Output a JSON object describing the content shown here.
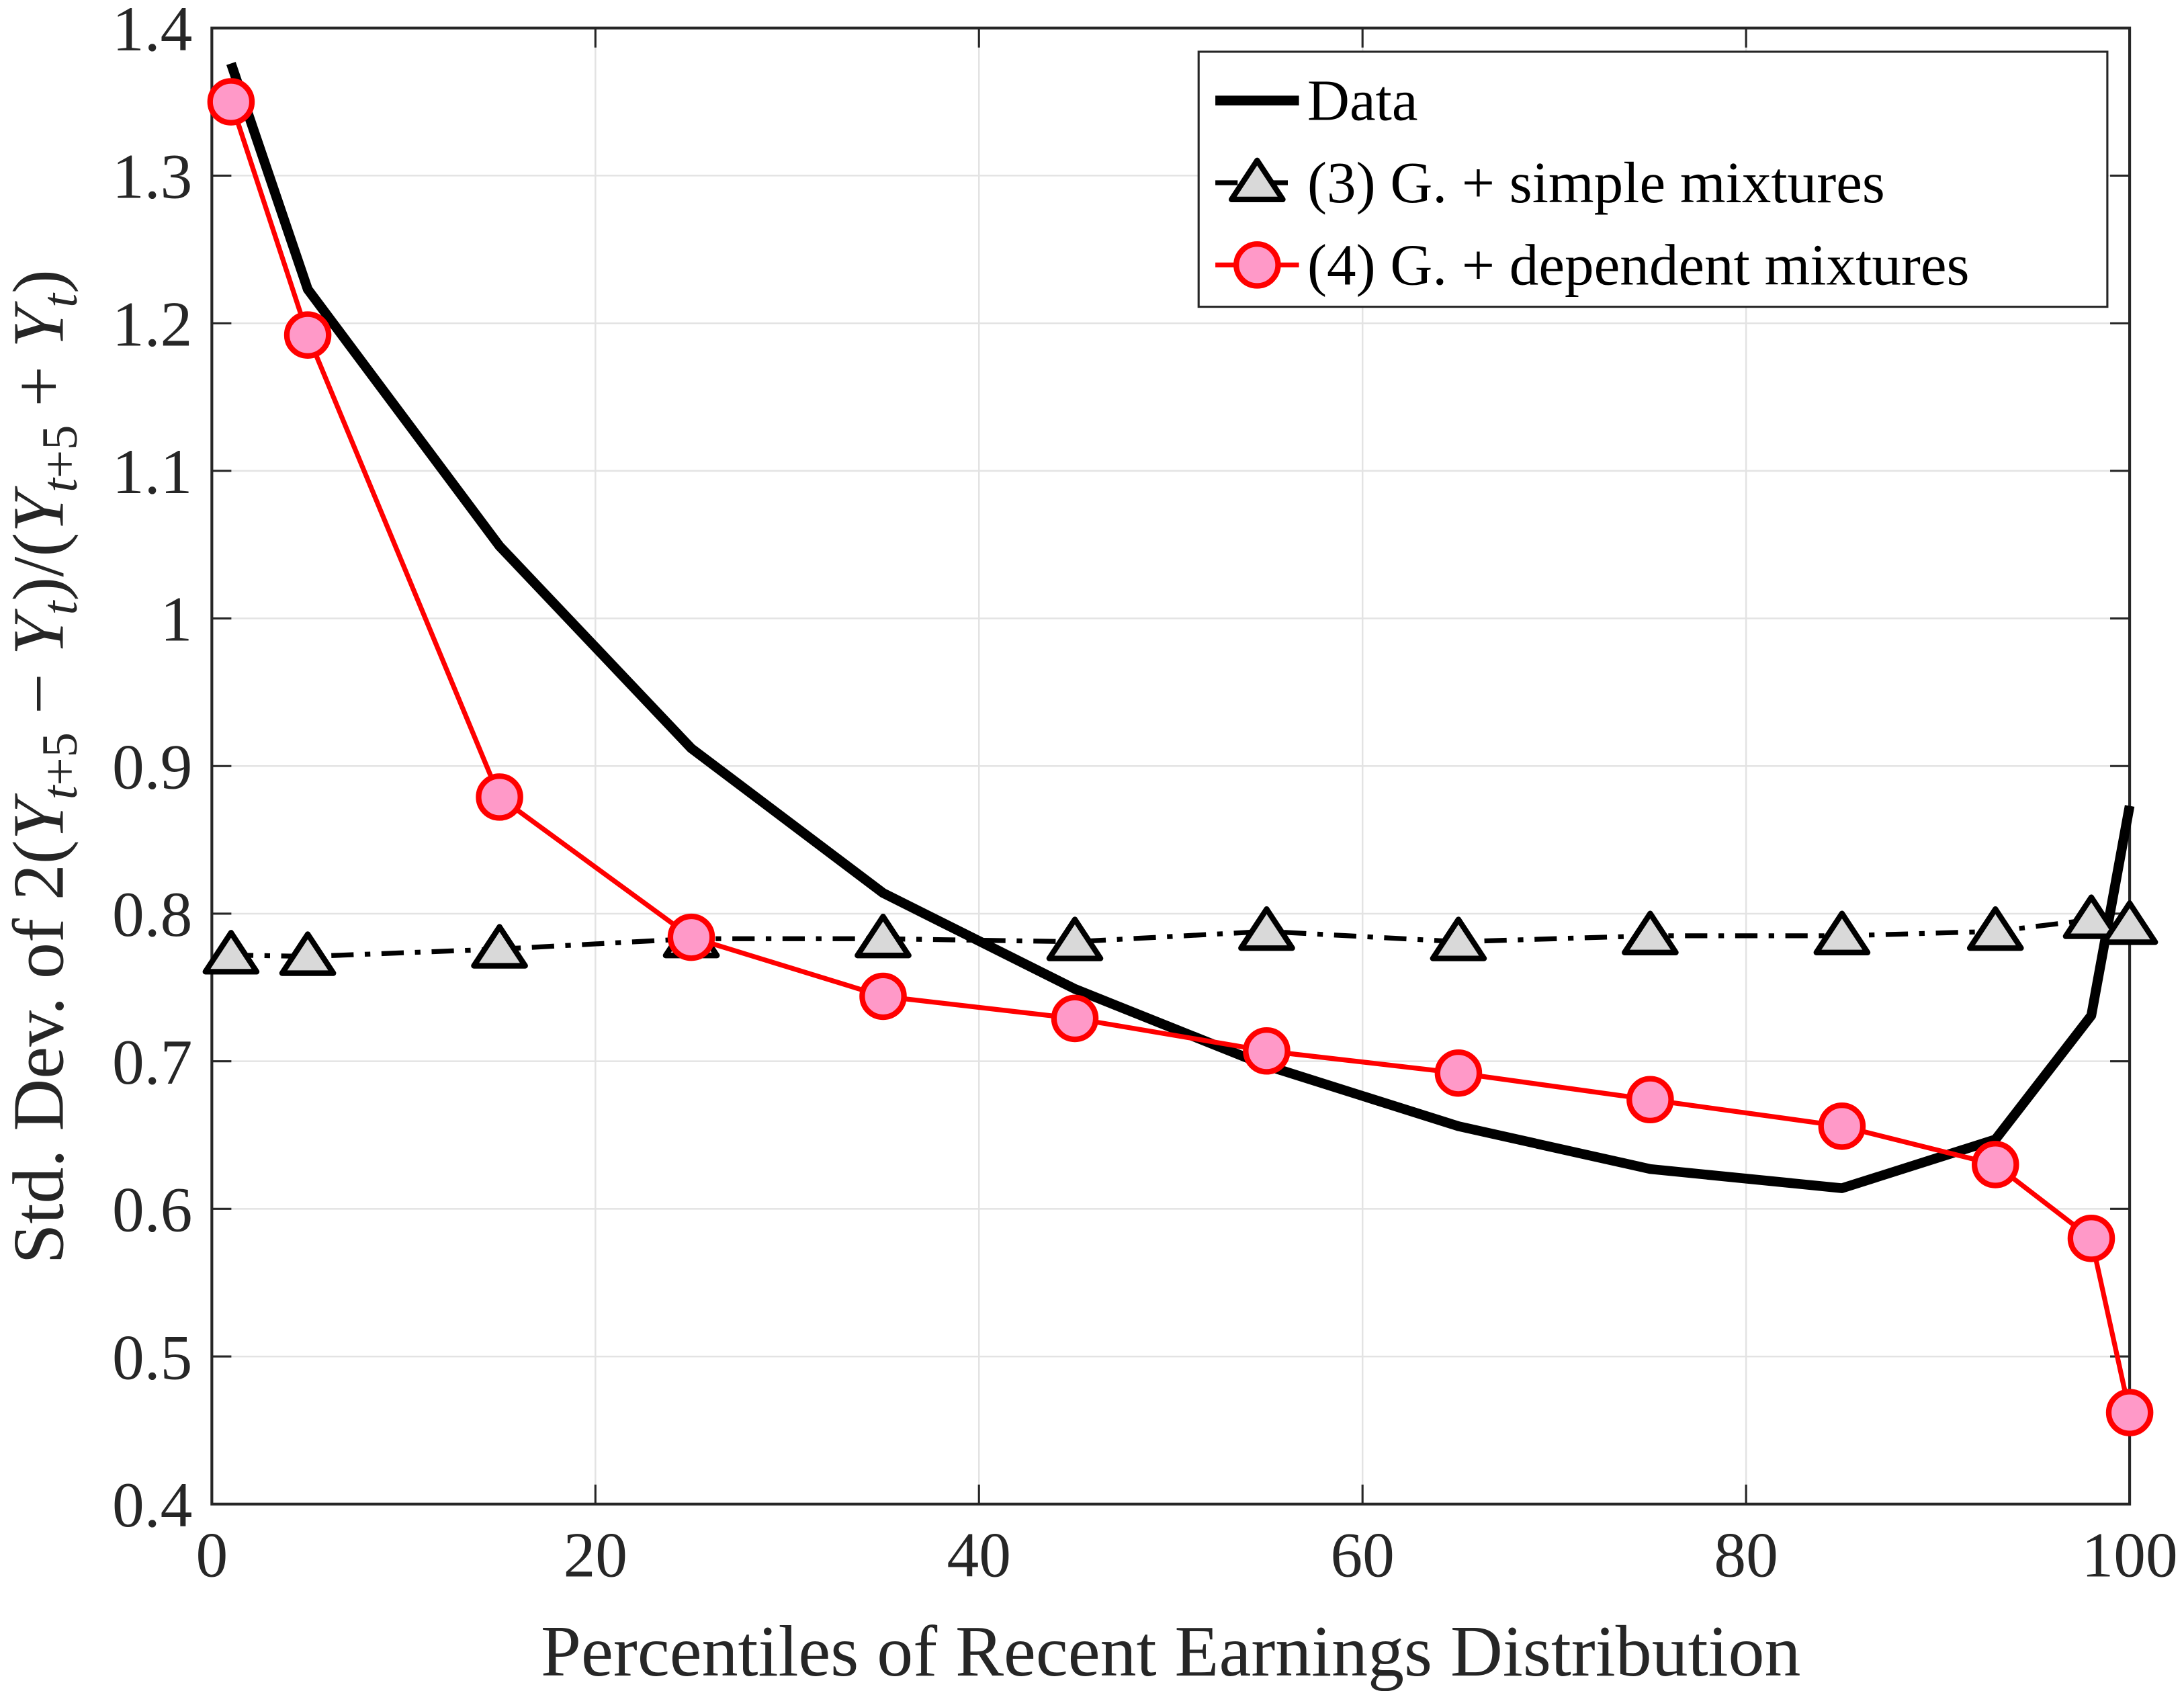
{
  "chart_data": {
    "type": "line",
    "title": "",
    "xlabel": "Percentiles of Recent Earnings Distribution",
    "ylabel_segments": [
      {
        "t": "Std. Dev. of 2(",
        "s": "n"
      },
      {
        "t": "Y",
        "s": "i"
      },
      {
        "t": "t",
        "s": "sub-i"
      },
      {
        "t": "+5",
        "s": "sub"
      },
      {
        "t": " − ",
        "s": "n"
      },
      {
        "t": "Y",
        "s": "i"
      },
      {
        "t": "t",
        "s": "sub-i"
      },
      {
        "t": ")/(",
        "s": "n"
      },
      {
        "t": "Y",
        "s": "i"
      },
      {
        "t": "t",
        "s": "sub-i"
      },
      {
        "t": "+5",
        "s": "sub"
      },
      {
        "t": " + ",
        "s": "n"
      },
      {
        "t": "Y",
        "s": "i"
      },
      {
        "t": "t",
        "s": "sub-i"
      },
      {
        "t": ")",
        "s": "n"
      }
    ],
    "xlim": [
      0,
      100
    ],
    "ylim": [
      0.4,
      1.4
    ],
    "xticks": [
      0,
      20,
      40,
      60,
      80,
      100
    ],
    "xtick_labels": [
      "0",
      "20",
      "40",
      "60",
      "80",
      "100"
    ],
    "yticks": [
      0.4,
      0.5,
      0.6,
      0.7,
      0.8,
      0.9,
      1.0,
      1.1,
      1.2,
      1.3,
      1.4
    ],
    "ytick_labels": [
      "0.4",
      "0.5",
      "0.6",
      "0.7",
      "0.8",
      "0.9",
      "1",
      "1.1",
      "1.2",
      "1.3",
      "1.4"
    ],
    "grid": true,
    "legend_position": "top-right",
    "x": [
      1,
      5,
      15,
      25,
      35,
      45,
      55,
      65,
      75,
      85,
      93,
      98,
      100
    ],
    "series": [
      {
        "name": "Data",
        "color": "#000000",
        "style": "solid-thick",
        "marker": "none",
        "values": [
          1.376,
          1.223,
          1.049,
          0.912,
          0.814,
          0.749,
          0.697,
          0.656,
          0.627,
          0.614,
          0.647,
          0.731,
          0.873
        ]
      },
      {
        "name": "(3) G. + simple mixtures",
        "color": "#000000",
        "fill": "#d9d9d9",
        "style": "dashdot",
        "marker": "triangle",
        "values": [
          0.772,
          0.771,
          0.776,
          0.783,
          0.783,
          0.781,
          0.788,
          0.781,
          0.785,
          0.785,
          0.788,
          0.796,
          0.792
        ]
      },
      {
        "name": "(4) G. + dependent mixtures",
        "color": "#ff0000",
        "fill": "#ff99c8",
        "style": "solid",
        "marker": "circle",
        "values": [
          1.35,
          1.192,
          0.879,
          0.784,
          0.744,
          0.729,
          0.707,
          0.692,
          0.674,
          0.656,
          0.63,
          0.58,
          0.462
        ]
      }
    ]
  }
}
